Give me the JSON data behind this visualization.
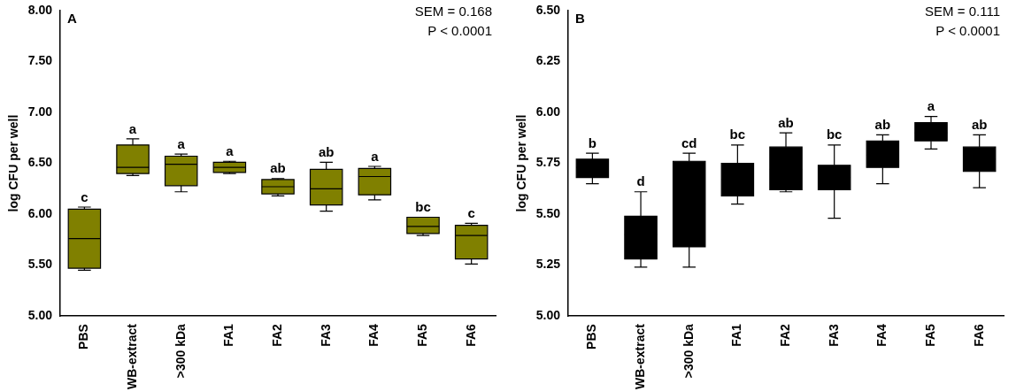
{
  "chart_data": [
    {
      "type": "box",
      "title": "A",
      "ylabel": "log CFU per well",
      "color": "#808000",
      "categories": [
        "PBS",
        "WB-extract",
        ">300 kDa",
        "FA1",
        "FA2",
        "FA3",
        "FA4",
        "FA5",
        "FA6"
      ],
      "boxes": [
        {
          "low": 5.45,
          "q1": 5.47,
          "median": 5.76,
          "q3": 6.05,
          "high": 6.07
        },
        {
          "low": 6.38,
          "q1": 6.4,
          "median": 6.46,
          "q3": 6.68,
          "high": 6.74
        },
        {
          "low": 6.22,
          "q1": 6.28,
          "median": 6.49,
          "q3": 6.57,
          "high": 6.59
        },
        {
          "low": 6.4,
          "q1": 6.41,
          "median": 6.46,
          "q3": 6.51,
          "high": 6.52
        },
        {
          "low": 6.18,
          "q1": 6.2,
          "median": 6.27,
          "q3": 6.34,
          "high": 6.35
        },
        {
          "low": 6.03,
          "q1": 6.09,
          "median": 6.25,
          "q3": 6.44,
          "high": 6.51
        },
        {
          "low": 6.14,
          "q1": 6.19,
          "median": 6.37,
          "q3": 6.45,
          "high": 6.47
        },
        {
          "low": 5.79,
          "q1": 5.81,
          "median": 5.88,
          "q3": 5.97,
          "high": 5.97
        },
        {
          "low": 5.51,
          "q1": 5.56,
          "median": 5.79,
          "q3": 5.89,
          "high": 5.91
        }
      ],
      "ylim": [
        5,
        8
      ],
      "yticks": [
        {
          "value": 5,
          "label": "5.00"
        },
        {
          "value": 5.5,
          "label": "5.50"
        },
        {
          "value": 6,
          "label": "6.00"
        },
        {
          "value": 6.5,
          "label": "6.50"
        },
        {
          "value": 7,
          "label": "7.00"
        },
        {
          "value": 7.5,
          "label": "7.50"
        },
        {
          "value": 8,
          "label": "8.00"
        }
      ],
      "annotations": [
        "SEM = 0.168",
        "P < 0.0001",
        {
          "text": "c",
          "x": "PBS",
          "y": 6.07
        },
        {
          "text": "a",
          "x": "WB-extract",
          "y": 6.74
        },
        {
          "text": "a",
          "x": ">300 kDa",
          "y": 6.59
        },
        {
          "text": "a",
          "x": "FA1",
          "y": 6.52
        },
        {
          "text": "ab",
          "x": "FA2",
          "y": 6.35
        },
        {
          "text": "ab",
          "x": "FA3",
          "y": 6.51
        },
        {
          "text": "a",
          "x": "FA4",
          "y": 6.47
        },
        {
          "text": "bc",
          "x": "FA5",
          "y": 5.97
        },
        {
          "text": "c",
          "x": "FA6",
          "y": 5.91
        }
      ]
    },
    {
      "type": "box",
      "title": "B",
      "ylabel": "log CFU per well",
      "color": "#000000",
      "categories": [
        "PBS",
        "WB-extract",
        ">300 kDa",
        "FA1",
        "FA2",
        "FA3",
        "FA4",
        "FA5",
        "FA6"
      ],
      "boxes": [
        {
          "low": 5.65,
          "q1": 5.68,
          "median": 5.73,
          "q3": 5.77,
          "high": 5.8
        },
        {
          "low": 5.24,
          "q1": 5.28,
          "median": 5.4,
          "q3": 5.49,
          "high": 5.61
        },
        {
          "low": 5.24,
          "q1": 5.34,
          "median": 5.55,
          "q3": 5.76,
          "high": 5.8
        },
        {
          "low": 5.55,
          "q1": 5.59,
          "median": 5.67,
          "q3": 5.75,
          "high": 5.84
        },
        {
          "low": 5.61,
          "q1": 5.62,
          "median": 5.72,
          "q3": 5.83,
          "high": 5.9
        },
        {
          "low": 5.48,
          "q1": 5.62,
          "median": 5.68,
          "q3": 5.74,
          "high": 5.84
        },
        {
          "low": 5.65,
          "q1": 5.73,
          "median": 5.79,
          "q3": 5.86,
          "high": 5.89
        },
        {
          "low": 5.82,
          "q1": 5.86,
          "median": 5.9,
          "q3": 5.95,
          "high": 5.98
        },
        {
          "low": 5.63,
          "q1": 5.71,
          "median": 5.77,
          "q3": 5.83,
          "high": 5.89
        }
      ],
      "ylim": [
        5,
        6.5
      ],
      "yticks": [
        {
          "value": 5,
          "label": "5.00"
        },
        {
          "value": 5.25,
          "label": "5.25"
        },
        {
          "value": 5.5,
          "label": "5.50"
        },
        {
          "value": 5.75,
          "label": "5.75"
        },
        {
          "value": 6,
          "label": "6.00"
        },
        {
          "value": 6.25,
          "label": "6.25"
        },
        {
          "value": 6.5,
          "label": "6.50"
        }
      ],
      "annotations": [
        "SEM = 0.111",
        "P < 0.0001",
        {
          "text": "b",
          "x": "PBS",
          "y": 5.8
        },
        {
          "text": "d",
          "x": "WB-extract",
          "y": 5.61
        },
        {
          "text": "cd",
          "x": ">300 kDa",
          "y": 5.8
        },
        {
          "text": "bc",
          "x": "FA1",
          "y": 5.84
        },
        {
          "text": "ab",
          "x": "FA2",
          "y": 5.9
        },
        {
          "text": "bc",
          "x": "FA3",
          "y": 5.84
        },
        {
          "text": "ab",
          "x": "FA4",
          "y": 5.89
        },
        {
          "text": "a",
          "x": "FA5",
          "y": 5.98
        },
        {
          "text": "ab",
          "x": "FA6",
          "y": 5.89
        }
      ]
    }
  ]
}
